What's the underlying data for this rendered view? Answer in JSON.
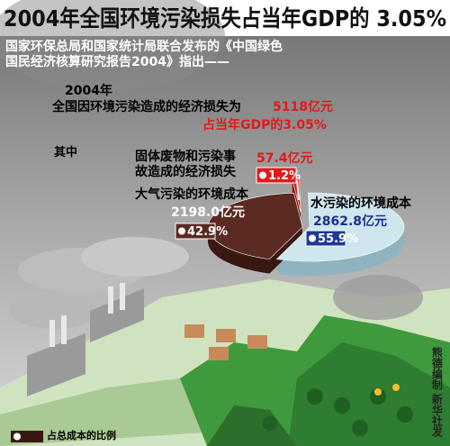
{
  "chart_data": {
    "type": "pie",
    "title": "2004年全国环境污染损失占当年GDP的 3.05%",
    "subtitle": "国家环保总局和国家统计局联合发布的《中国绿色国民经济核算研究报告2004》指出——",
    "year": "2004年",
    "intro": "全国因环境污染造成的经济损失为",
    "total": "5118亿元",
    "gdp_share": "占当年GDP的3.05%",
    "breakdown_label": "其中",
    "categories": [
      "固体废物和污染事故造成的经济损失",
      "水污染的环境成本",
      "大气污染的环境成本"
    ],
    "values": [
      1.2,
      55.9,
      42.9
    ],
    "value_labels": [
      "1.2%",
      "55.9%",
      "42.9%"
    ],
    "amount_labels": [
      "57.4亿元",
      "2862.8亿元",
      "2198.0亿元"
    ],
    "colors": [
      "#e01b1b",
      "#cfe6ee",
      "#5b2a22"
    ],
    "legend_label": "占总成本的比例",
    "credit": "熊德编制 新华社发"
  }
}
